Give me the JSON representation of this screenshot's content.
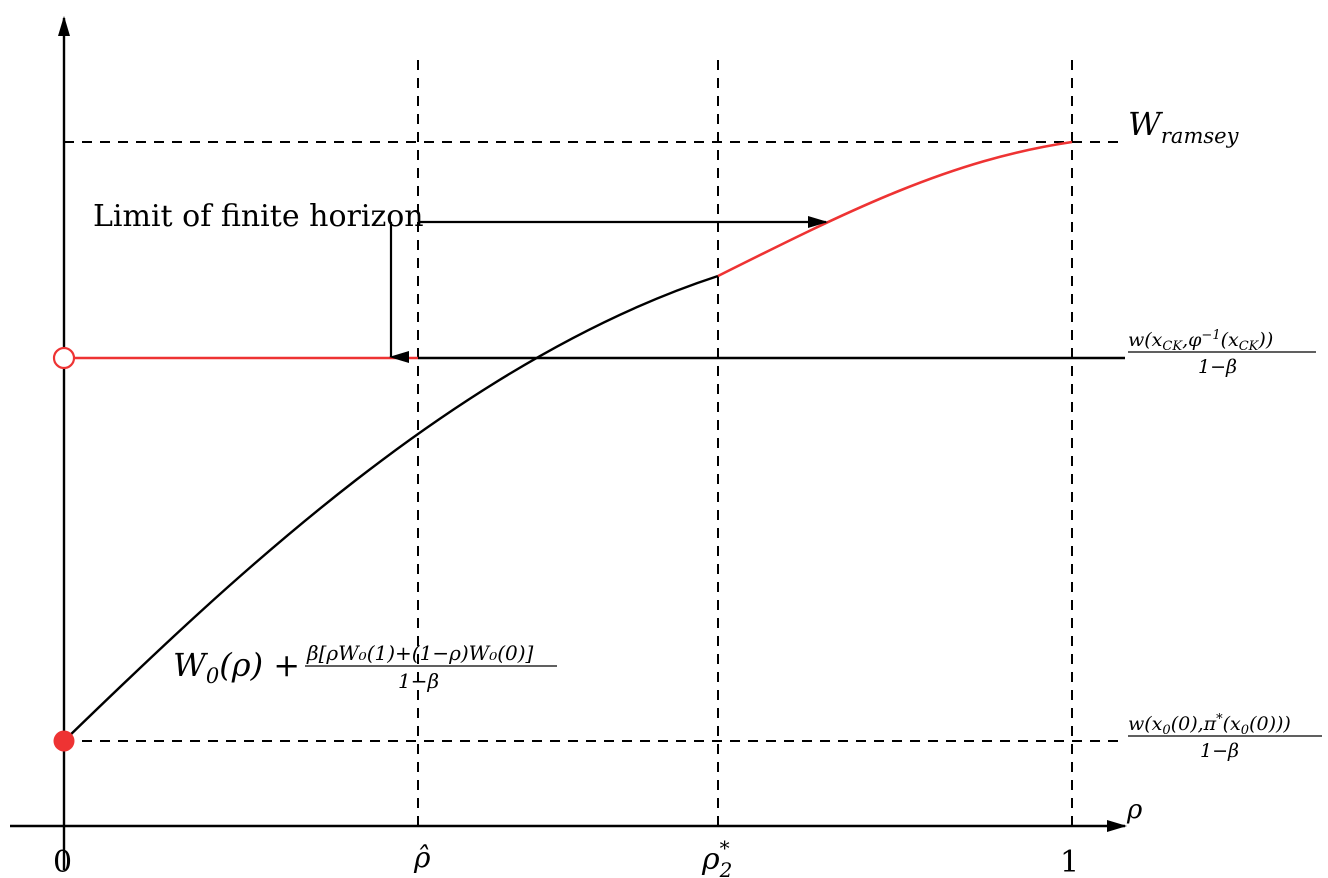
{
  "axes": {
    "x_label": "ρ",
    "ticks": {
      "origin": "0",
      "rho_hat": "ρ̂",
      "rho_star_base": "ρ",
      "rho_star_sup": "*",
      "rho_star_sub": "2",
      "one": "1"
    }
  },
  "levels": {
    "w_ramsey_base": "W",
    "w_ramsey_sub": "ramsey",
    "w_ck_numerator": "w(x",
    "w_ck_num_sub1": "CK",
    "w_ck_num_mid": ",φ",
    "w_ck_num_sup": "−1",
    "w_ck_num_mid2": "(x",
    "w_ck_num_sub2": "CK",
    "w_ck_num_end": "))",
    "w_ck_denominator": "1−β",
    "w_x0_num_a": "w(x",
    "w_x0_num_sub1": "0",
    "w_x0_num_b": "(0),π",
    "w_x0_num_sup": "*",
    "w_x0_num_c": "(x",
    "w_x0_num_sub2": "0",
    "w_x0_num_d": "(0)))",
    "w_x0_denominator": "1−β"
  },
  "annotations": {
    "limit_label": "Limit of finite horizon",
    "curve_label_a": "W",
    "curve_label_sub": "0",
    "curve_label_b": "(ρ) +",
    "curve_frac_num": "β[ρW₀(1)+(1−ρ)W₀(0)]",
    "curve_frac_den": "1−β"
  },
  "colors": {
    "red": "#ee3333",
    "black": "#000000"
  }
}
